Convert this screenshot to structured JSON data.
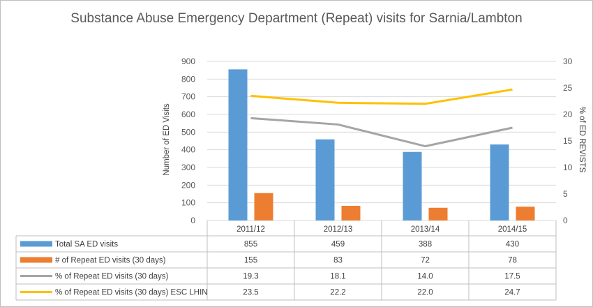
{
  "chart_data": {
    "type": "bar",
    "title": "Substance Abuse Emergency Department (Repeat) visits for Sarnia/Lambton",
    "categories": [
      "2011/12",
      "2012/13",
      "2013/14",
      "2014/15"
    ],
    "ylabel": "Number of ED Visits",
    "y2label": "% of ED REVISTS",
    "ylim": [
      0,
      900
    ],
    "y2lim": [
      0,
      30
    ],
    "yticks": [
      "0",
      "100",
      "200",
      "300",
      "400",
      "500",
      "600",
      "700",
      "800",
      "900"
    ],
    "y2ticks": [
      "0",
      "5",
      "10",
      "15",
      "20",
      "25",
      "30"
    ],
    "grid": true,
    "legend": "data-table",
    "series": [
      {
        "name": "Total SA  ED visits",
        "type": "bar",
        "axis": "left",
        "color": "#5b9bd5",
        "values": [
          855,
          459,
          388,
          430
        ],
        "labels": [
          "855",
          "459",
          "388",
          "430"
        ]
      },
      {
        "name": "# of Repeat ED visits (30 days)",
        "type": "bar",
        "axis": "left",
        "color": "#ed7d31",
        "values": [
          155,
          83,
          72,
          78
        ],
        "labels": [
          "155",
          "83",
          "72",
          "78"
        ]
      },
      {
        "name": "% of Repeat ED visits (30 days)",
        "type": "line",
        "axis": "right",
        "color": "#a5a5a5",
        "values": [
          19.3,
          18.1,
          14.0,
          17.5
        ],
        "labels": [
          "19.3",
          "18.1",
          "14.0",
          "17.5"
        ]
      },
      {
        "name": "% of Repeat ED visits (30 days) ESC LHIN",
        "type": "line",
        "axis": "right",
        "color": "#ffc000",
        "values": [
          23.5,
          22.2,
          22.0,
          24.7
        ],
        "labels": [
          "23.5",
          "22.2",
          "22.0",
          "24.7"
        ]
      }
    ]
  }
}
